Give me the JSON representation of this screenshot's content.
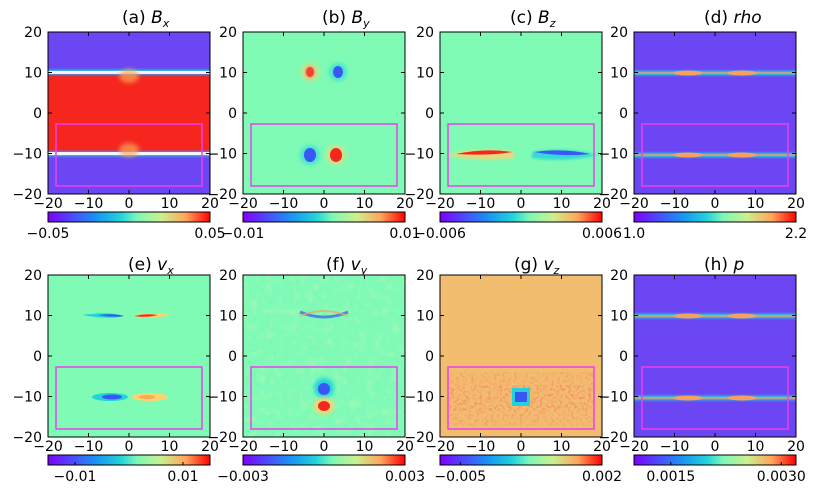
{
  "figure": {
    "colors": {
      "bg_purple": "#6b46f2",
      "bg_green": "#80fbb6",
      "bg_orange": "#f2bd6e",
      "red": "#f6261e",
      "blue": "#3a56f6",
      "magenta_box": "#ee3ff0"
    }
  },
  "chart_data": [
    {
      "type": "heatmap",
      "id": "a",
      "title_prefix": "(a)",
      "title_var": "B",
      "title_sub": "x",
      "xlim": [
        -20,
        20
      ],
      "ylim": [
        -20,
        20
      ],
      "xticks": [
        "−20",
        "−10",
        "0",
        "10",
        "20"
      ],
      "yticks": [
        "20",
        "10",
        "0",
        "−10",
        "−20"
      ],
      "colorbar": {
        "range": [
          -0.05,
          0.05
        ],
        "ticks": [
          {
            "value": -0.05,
            "label": "−0.05"
          },
          {
            "value": 0.05,
            "label": "0.05"
          }
        ]
      },
      "highlight_box": {
        "x": [
          -18,
          18
        ],
        "y": [
          -18,
          -2
        ]
      },
      "features": "B_x ~ +0.05 between the two current sheets (y=-10..10), ~ -0.05 outside; narrow transition layers at y=±10"
    },
    {
      "type": "heatmap",
      "id": "b",
      "title_prefix": "(b)",
      "title_var": "B",
      "title_sub": "y",
      "xlim": [
        -20,
        20
      ],
      "ylim": [
        -20,
        20
      ],
      "xticks": [
        "−20",
        "−10",
        "0",
        "10",
        "20"
      ],
      "yticks": [
        "20",
        "10",
        "0",
        "−10",
        "−20"
      ],
      "colorbar": {
        "range": [
          -0.01,
          0.01
        ],
        "ticks": [
          {
            "value": -0.01,
            "label": "−0.01"
          },
          {
            "value": 0.01,
            "label": "0.01"
          }
        ]
      },
      "highlight_box": {
        "x": [
          -18,
          18
        ],
        "y": [
          -18,
          -2
        ]
      },
      "features": "quadrupolar-like lobes at x≈±3 on y=±10; sign reversed between the two sheets"
    },
    {
      "type": "heatmap",
      "id": "c",
      "title_prefix": "(c)",
      "title_var": "B",
      "title_sub": "z",
      "xlim": [
        -20,
        20
      ],
      "ylim": [
        -20,
        20
      ],
      "xticks": [
        "−20",
        "−10",
        "0",
        "10",
        "20"
      ],
      "yticks": [
        "20",
        "10",
        "0",
        "−10",
        "−20"
      ],
      "colorbar": {
        "range": [
          -0.006,
          0.006
        ],
        "ticks": [
          {
            "value": -0.006,
            "label": "−0.006"
          },
          {
            "value": 0.006,
            "label": "0.006"
          }
        ]
      },
      "highlight_box": {
        "x": [
          -18,
          18
        ],
        "y": [
          -18,
          -2
        ]
      },
      "features": "elongated bipolar structure along the lower sheet y=-10"
    },
    {
      "type": "heatmap",
      "id": "d",
      "title_prefix": "(d)",
      "title_var": "rho",
      "title_sub": "",
      "xlim": [
        -20,
        20
      ],
      "ylim": [
        -20,
        20
      ],
      "xticks": [
        "−20",
        "−10",
        "0",
        "10",
        "20"
      ],
      "yticks": [
        "20",
        "10",
        "0",
        "−10",
        "−20"
      ],
      "colorbar": {
        "range": [
          1.0,
          2.2
        ],
        "ticks": [
          {
            "value": 1.0,
            "label": "1.0"
          },
          {
            "value": 2.2,
            "label": "2.2"
          }
        ]
      },
      "highlight_box": {
        "x": [
          -18,
          18
        ],
        "y": [
          -18,
          -2
        ]
      },
      "features": "density enhanced along both sheets (y=±10), pinched at x=0"
    },
    {
      "type": "heatmap",
      "id": "e",
      "title_prefix": "(e)",
      "title_var": "v",
      "title_sub": "x",
      "xlim": [
        -20,
        20
      ],
      "ylim": [
        -20,
        20
      ],
      "xticks": [
        "−20",
        "−10",
        "0",
        "10",
        "20"
      ],
      "yticks": [
        "20",
        "10",
        "0",
        "−10",
        "−20"
      ],
      "colorbar": {
        "range": [
          -0.015,
          0.015
        ],
        "ticks": [
          {
            "value": -0.01,
            "label": "−0.01"
          },
          {
            "value": 0.01,
            "label": "0.01"
          }
        ]
      },
      "highlight_box": {
        "x": [
          -18,
          18
        ],
        "y": [
          -18,
          -2
        ]
      },
      "features": "outflow jets: negative for x<0, positive for x>0 on both sheets"
    },
    {
      "type": "heatmap",
      "id": "f",
      "title_prefix": "(f)",
      "title_var": "v",
      "title_sub": "y",
      "xlim": [
        -20,
        20
      ],
      "ylim": [
        -20,
        20
      ],
      "xticks": [
        "−20",
        "−10",
        "0",
        "10",
        "20"
      ],
      "yticks": [
        "20",
        "10",
        "0",
        "−10",
        "−20"
      ],
      "colorbar": {
        "range": [
          -0.003,
          0.003
        ],
        "ticks": [
          {
            "value": -0.003,
            "label": "−0.003"
          },
          {
            "value": 0.003,
            "label": "0.003"
          }
        ]
      },
      "highlight_box": {
        "x": [
          -18,
          18
        ],
        "y": [
          -18,
          -2
        ]
      },
      "features": "inflow pattern at x=0 near y=-10 (blue above, red below), noisy background"
    },
    {
      "type": "heatmap",
      "id": "g",
      "title_prefix": "(g)",
      "title_var": "v",
      "title_sub": "z",
      "xlim": [
        -20,
        20
      ],
      "ylim": [
        -20,
        20
      ],
      "xticks": [
        "−20",
        "−10",
        "0",
        "10",
        "20"
      ],
      "yticks": [
        "20",
        "10",
        "0",
        "−10",
        "−20"
      ],
      "colorbar": {
        "range": [
          -0.006,
          0.002
        ],
        "ticks": [
          {
            "value": -0.005,
            "label": "−0.005"
          },
          {
            "value": 0.002,
            "label": "0.002"
          }
        ]
      },
      "highlight_box": {
        "x": [
          -18,
          18
        ],
        "y": [
          -18,
          -2
        ]
      },
      "features": "nearly uniform ~0 background; noisy red/blue band along y=-10 with a strong blue/cyan core at x=0"
    },
    {
      "type": "heatmap",
      "id": "h",
      "title_prefix": "(h)",
      "title_var": "p",
      "title_sub": "",
      "xlim": [
        -20,
        20
      ],
      "ylim": [
        -20,
        20
      ],
      "xticks": [
        "−20",
        "−10",
        "0",
        "10",
        "20"
      ],
      "yticks": [
        "20",
        "10",
        "0",
        "−10",
        "−20"
      ],
      "colorbar": {
        "range": [
          0.001,
          0.0032
        ],
        "ticks": [
          {
            "value": 0.0015,
            "label": "0.0015"
          },
          {
            "value": 0.003,
            "label": "0.0030"
          }
        ]
      },
      "highlight_box": {
        "x": [
          -18,
          18
        ],
        "y": [
          -18,
          -2
        ]
      },
      "features": "pressure enhanced along both sheets (y=±10), pinched at x=0"
    }
  ]
}
